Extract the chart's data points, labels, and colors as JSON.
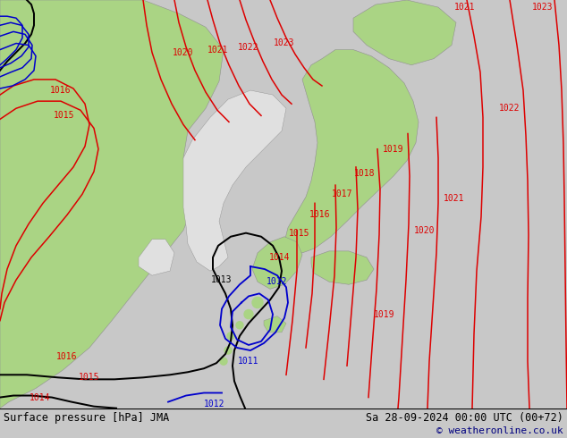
{
  "title_left": "Surface pressure [hPa] JMA",
  "title_right": "Sa 28-09-2024 00:00 UTC (00+72)",
  "copyright": "© weatheronline.co.uk",
  "bg_color": "#c8c8c8",
  "land_color": "#aad484",
  "sea_color": "#e0e0e0",
  "coast_color": "#909090",
  "red": "#dd0000",
  "blue": "#0000cc",
  "black": "#000000",
  "lw": 1.1,
  "fs": 7.0,
  "figsize": [
    6.34,
    4.9
  ],
  "dpi": 100
}
